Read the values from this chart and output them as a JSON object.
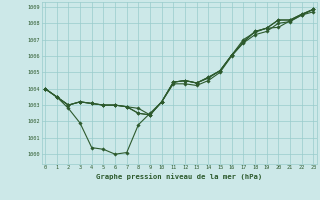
{
  "bg_color": "#cce8e8",
  "grid_color": "#99cccc",
  "line_color": "#2d5a2d",
  "marker_color": "#2d5a2d",
  "title": "Graphe pression niveau de la mer (hPa)",
  "title_color": "#2d5a2d",
  "ylabel_vals": [
    1000,
    1001,
    1002,
    1003,
    1004,
    1005,
    1006,
    1007,
    1008,
    1009
  ],
  "xlim": [
    -0.3,
    23.3
  ],
  "ylim": [
    999.4,
    1009.3
  ],
  "xticks": [
    0,
    1,
    2,
    3,
    4,
    5,
    6,
    7,
    8,
    9,
    10,
    11,
    12,
    13,
    14,
    15,
    16,
    17,
    18,
    19,
    20,
    21,
    22,
    23
  ],
  "line1_x": [
    0,
    1,
    2,
    3,
    4,
    5,
    6,
    7,
    8,
    9,
    10,
    11,
    12,
    13,
    14,
    15,
    16,
    17,
    18,
    19,
    20,
    21,
    22,
    23
  ],
  "line1_y": [
    1004.0,
    1003.5,
    1002.8,
    1001.9,
    1000.4,
    1000.3,
    1000.0,
    1000.1,
    1001.8,
    1002.5,
    1003.2,
    1004.3,
    1004.3,
    1004.2,
    1004.5,
    1005.0,
    1006.0,
    1006.8,
    1007.3,
    1007.5,
    1008.0,
    1008.1,
    1008.5,
    1008.7
  ],
  "line2_x": [
    0,
    1,
    2,
    3,
    4,
    5,
    6,
    7,
    8,
    9,
    10,
    11,
    12,
    13,
    14,
    15,
    16,
    17,
    18,
    19,
    20,
    21,
    22,
    23
  ],
  "line2_y": [
    1004.0,
    1003.5,
    1003.0,
    1003.2,
    1003.1,
    1003.0,
    1003.0,
    1002.9,
    1002.5,
    1002.4,
    1003.2,
    1004.4,
    1004.5,
    1004.35,
    1004.7,
    1005.1,
    1006.05,
    1006.85,
    1007.5,
    1007.7,
    1008.2,
    1008.2,
    1008.55,
    1008.85
  ],
  "line3_x": [
    0,
    1,
    2,
    3,
    4,
    5,
    6,
    7,
    8,
    9,
    10,
    11,
    12,
    13,
    14,
    15,
    16,
    17,
    18,
    19,
    20,
    21,
    22,
    23
  ],
  "line3_y": [
    1004.0,
    1003.5,
    1003.0,
    1003.2,
    1003.1,
    1003.0,
    1003.0,
    1002.9,
    1002.8,
    1002.4,
    1003.2,
    1004.4,
    1004.5,
    1004.35,
    1004.65,
    1005.1,
    1006.05,
    1007.0,
    1007.45,
    1007.7,
    1007.75,
    1008.15,
    1008.5,
    1008.85
  ],
  "line4_x": [
    0,
    1,
    2,
    3,
    4,
    5,
    6,
    7,
    8,
    9,
    10,
    11,
    12,
    13,
    14,
    15,
    16,
    17,
    18,
    19,
    20,
    21,
    22,
    23
  ],
  "line4_y": [
    1004.0,
    1003.5,
    1003.0,
    1003.2,
    1003.1,
    1003.0,
    1003.0,
    1002.9,
    1002.5,
    1002.4,
    1003.2,
    1004.4,
    1004.5,
    1004.35,
    1004.7,
    1005.1,
    1006.05,
    1006.85,
    1007.5,
    1007.7,
    1008.2,
    1008.2,
    1008.55,
    1008.85
  ]
}
